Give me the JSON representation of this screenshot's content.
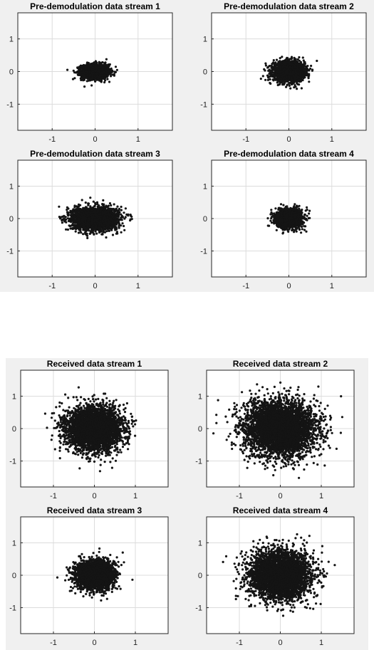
{
  "figures": [
    {
      "panels": [
        {
          "title": "Pre-demodulation data stream 1",
          "cx": 0.0,
          "cy": 0.0,
          "sx": 0.16,
          "sy": 0.11,
          "n": 1800
        },
        {
          "title": "Pre-demodulation data stream 2",
          "cx": 0.0,
          "cy": 0.0,
          "sx": 0.18,
          "sy": 0.15,
          "n": 2000
        },
        {
          "title": "Pre-demodulation data stream 3",
          "cx": 0.0,
          "cy": 0.0,
          "sx": 0.26,
          "sy": 0.17,
          "n": 2600
        },
        {
          "title": "Pre-demodulation data stream 4",
          "cx": 0.0,
          "cy": 0.0,
          "sx": 0.15,
          "sy": 0.14,
          "n": 1800
        }
      ]
    },
    {
      "panels": [
        {
          "title": "Received data stream 1",
          "cx": 0.0,
          "cy": 0.0,
          "sx": 0.33,
          "sy": 0.33,
          "n": 3800
        },
        {
          "title": "Received data stream 2",
          "cx": 0.0,
          "cy": 0.0,
          "sx": 0.44,
          "sy": 0.42,
          "n": 4200
        },
        {
          "title": "Received data stream 3",
          "cx": 0.0,
          "cy": 0.0,
          "sx": 0.22,
          "sy": 0.22,
          "n": 3000
        },
        {
          "title": "Received data stream 4",
          "cx": 0.0,
          "cy": 0.0,
          "sx": 0.36,
          "sy": 0.36,
          "n": 4000
        }
      ]
    }
  ],
  "chart_data": [
    {
      "type": "scatter",
      "title": "Pre-demodulation data stream 1",
      "xlim": [
        -1.8,
        1.8
      ],
      "ylim": [
        -1.8,
        1.8
      ],
      "xticks": [
        -1,
        0,
        1
      ],
      "yticks": [
        1,
        0,
        -1
      ],
      "grid": true,
      "cluster_center": [
        0,
        0
      ],
      "cluster_spread_x": 0.16,
      "cluster_spread_y": 0.11
    },
    {
      "type": "scatter",
      "title": "Pre-demodulation data stream 2",
      "xlim": [
        -1.8,
        1.8
      ],
      "ylim": [
        -1.8,
        1.8
      ],
      "xticks": [
        -1,
        0,
        1
      ],
      "yticks": [
        1,
        0,
        -1
      ],
      "grid": true,
      "cluster_center": [
        0,
        0
      ],
      "cluster_spread_x": 0.18,
      "cluster_spread_y": 0.15
    },
    {
      "type": "scatter",
      "title": "Pre-demodulation data stream 3",
      "xlim": [
        -1.8,
        1.8
      ],
      "ylim": [
        -1.8,
        1.8
      ],
      "xticks": [
        -1,
        0,
        1
      ],
      "yticks": [
        1,
        0,
        -1
      ],
      "grid": true,
      "cluster_center": [
        0,
        0
      ],
      "cluster_spread_x": 0.26,
      "cluster_spread_y": 0.17
    },
    {
      "type": "scatter",
      "title": "Pre-demodulation data stream 4",
      "xlim": [
        -1.8,
        1.8
      ],
      "ylim": [
        -1.8,
        1.8
      ],
      "xticks": [
        -1,
        0,
        1
      ],
      "yticks": [
        1,
        0,
        -1
      ],
      "grid": true,
      "cluster_center": [
        0,
        0
      ],
      "cluster_spread_x": 0.15,
      "cluster_spread_y": 0.14
    },
    {
      "type": "scatter",
      "title": "Received data stream 1",
      "xlim": [
        -1.8,
        1.8
      ],
      "ylim": [
        -1.8,
        1.8
      ],
      "xticks": [
        -1,
        0,
        1
      ],
      "yticks": [
        1,
        0,
        -1
      ],
      "grid": true,
      "cluster_center": [
        0,
        0
      ],
      "cluster_spread_x": 0.33,
      "cluster_spread_y": 0.33
    },
    {
      "type": "scatter",
      "title": "Received data stream 2",
      "xlim": [
        -1.8,
        1.8
      ],
      "ylim": [
        -1.8,
        1.8
      ],
      "xticks": [
        -1,
        0,
        1
      ],
      "yticks": [
        1,
        0,
        -1
      ],
      "grid": true,
      "cluster_center": [
        0,
        0
      ],
      "cluster_spread_x": 0.44,
      "cluster_spread_y": 0.42
    },
    {
      "type": "scatter",
      "title": "Received data stream 3",
      "xlim": [
        -1.8,
        1.8
      ],
      "ylim": [
        -1.8,
        1.8
      ],
      "xticks": [
        -1,
        0,
        1
      ],
      "yticks": [
        1,
        0,
        -1
      ],
      "grid": true,
      "cluster_center": [
        0,
        0
      ],
      "cluster_spread_x": 0.22,
      "cluster_spread_y": 0.22
    },
    {
      "type": "scatter",
      "title": "Received data stream 4",
      "xlim": [
        -1.8,
        1.8
      ],
      "ylim": [
        -1.8,
        1.8
      ],
      "xticks": [
        -1,
        0,
        1
      ],
      "yticks": [
        1,
        0,
        -1
      ],
      "grid": true,
      "cluster_center": [
        0,
        0
      ],
      "cluster_spread_x": 0.36,
      "cluster_spread_y": 0.36
    }
  ],
  "axis": {
    "xlim": [
      -1.8,
      1.8
    ],
    "ylim": [
      -1.8,
      1.8
    ],
    "xticks": [
      -1,
      0,
      1
    ],
    "yticks": [
      1,
      0,
      -1
    ]
  },
  "colors": {
    "points": "#141414",
    "grid": "#dcdcdc",
    "axes": "#262626",
    "figure_bg": "#f0f0f0",
    "plot_bg": "#ffffff"
  }
}
